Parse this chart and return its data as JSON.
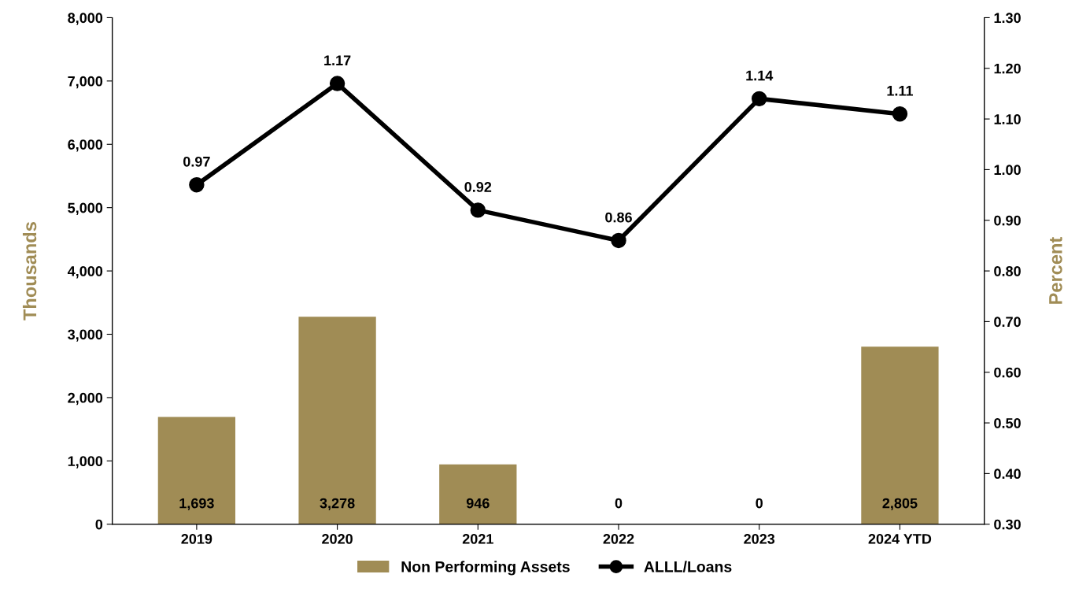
{
  "chart_data": {
    "type": "bar",
    "categories": [
      "2019",
      "2020",
      "2021",
      "2022",
      "2023",
      "2024 YTD"
    ],
    "ylabel": "Thousands",
    "y2label": "Percent",
    "series": [
      {
        "name": "Non Performing Assets",
        "color": "#a08c55",
        "values": [
          1693,
          3278,
          946,
          0,
          0,
          2805
        ],
        "value_labels": [
          "1,693",
          "3,278",
          "946",
          "0",
          "0",
          "2,805"
        ]
      },
      {
        "name": "ALLL/Loans",
        "type": "line",
        "axis": "y2",
        "color": "#000000",
        "values": [
          0.97,
          1.17,
          0.92,
          0.86,
          1.14,
          1.11
        ],
        "value_labels": [
          "0.97",
          "1.17",
          "0.92",
          "0.86",
          "1.14",
          "1.11"
        ]
      }
    ],
    "ylim": [
      0,
      8000
    ],
    "yticks": [
      0,
      {
        "value": 1000,
        "label": "1,000"
      },
      {
        "value": 2000,
        "label": "2,000"
      },
      {
        "value": 3000,
        "label": "3,000"
      },
      {
        "value": 4000,
        "label": "4,000"
      },
      {
        "value": 5000,
        "label": "5,000"
      },
      {
        "value": 6000,
        "label": "6,000"
      },
      {
        "value": 7000,
        "label": "7,000"
      },
      {
        "value": 8000,
        "label": "8,000"
      }
    ],
    "y2lim": [
      0.3,
      1.3
    ],
    "y2ticks": [
      {
        "value": 0.3,
        "label": "0.30"
      },
      {
        "value": 0.4,
        "label": "0.40"
      },
      {
        "value": 0.5,
        "label": "0.50"
      },
      {
        "value": 0.6,
        "label": "0.60"
      },
      {
        "value": 0.7,
        "label": "0.70"
      },
      {
        "value": 0.8,
        "label": "0.80"
      },
      {
        "value": 0.9,
        "label": "0.90"
      },
      {
        "value": 1.0,
        "label": "1.00"
      },
      {
        "value": 1.1,
        "label": "1.10"
      },
      {
        "value": 1.2,
        "label": "1.20"
      },
      {
        "value": 1.3,
        "label": "1.30"
      }
    ],
    "legend": "bottom",
    "marker": "circle",
    "grid": false
  }
}
